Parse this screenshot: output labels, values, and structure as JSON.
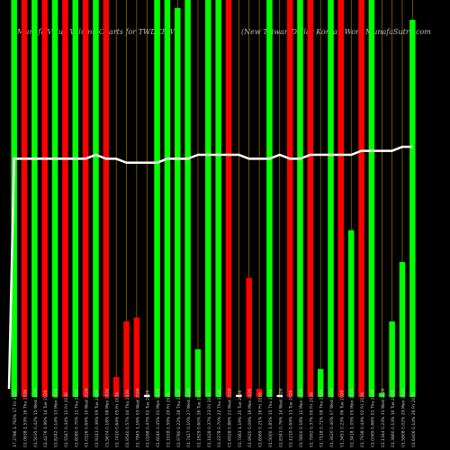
{
  "header": {
    "left_title": "Munafa Value Volume Charts for TWDKRW",
    "right_title": "(New Taiwan Dollar Korean Won) MunafaSutra.com"
  },
  "colors": {
    "background": "#000000",
    "up": "#00ff00",
    "down": "#ff0000",
    "neutral": "#ffffff",
    "grid": "#b8860b",
    "price_line": "#ffffff"
  },
  "chart_data": {
    "type": "bar",
    "title": "Munafa Value Volume Charts for TWDKRW",
    "subtitle": "(New Taiwan Dollar Korean Won) MunafaSutra.com",
    "ylim": [
      0,
      100
    ],
    "grid": true,
    "categories": [
      "17 Fri 2026",
      "16 Thu 2026",
      "15 Wed 2026",
      "14 Tue 2026",
      "13 Mon 2026",
      "12 Fri 2026",
      "11 Thu 2026",
      "10 Wed 2026",
      "09 Tue 2026",
      "08 Mon 2026",
      "05 Fri 2026",
      "04 Thu 2026",
      "03 Wed 2026",
      "02 Tue 2026",
      "01 Mon 2026",
      "29 Fri 2026",
      "28 Thu 2026",
      "27 Wed 2026",
      "26 Tue 2026",
      "23 Fri 2026",
      "22 Thu 2026",
      "21 Wed 2026",
      "20 Tue 2026",
      "19 Mon 2026",
      "16 Fri 2026",
      "15 Thu 2026",
      "14 Wed 2026",
      "13 Tue 2026",
      "12 Mon 2026",
      "09 Fri 2026",
      "08 Thu 2026",
      "07 Wed 2026",
      "06 Tue 2026",
      "05 Mon 2026",
      "02 Fri 2026",
      "01 Thu 2026",
      "31 Wed 2026",
      "30 Tue 2026",
      "29 Mon 2026",
      "26 Fri 2026"
    ],
    "x_labels": [
      "17.2786 1.763%",
      "01.0638 1.53%",
      "01.5035 0.42%",
      "01.4276 1.96%",
      "01.8242 0.14%",
      "01.5547 0.34%",
      "01.6080 0.70%",
      "01.0526 0.69%",
      "01.9243 0.36%",
      "01.5674 0.18%",
      "01.7410 0.64%",
      "01.9540 0.57%",
      "01.7845 1.16%",
      "01.0168 0.47%",
      "01.6040 0.45%",
      "01.1918 0.59%",
      "01.9780 0.22%",
      "01.7427 0.10%",
      "01.1829 0.60%",
      "01.1428 0.37%",
      "01.2278 0.70%",
      "01.6928 0.86%",
      "01.7463 1.19%",
      "01.9920 0.09%",
      "01.6569 0.21%",
      "01.5000 1.85%",
      "01.8341 0.76%",
      "01.1219 0.64%",
      "01.5800 0.18%",
      "01.7992 0.37%",
      "01.7118 0.71%",
      "01.3420 0.40%",
      "01.3451 0.23%",
      "01.3418 1.05%",
      "01.7938 0.44%",
      "01.0069 0.66%",
      "01.1344 0.23%",
      "01.3860 0.13%",
      "01.5808 0.02%",
      "01.6406 0.14%"
    ],
    "series": [
      {
        "values": [
          100,
          100,
          100,
          100,
          100,
          100,
          100,
          100,
          100,
          100,
          5,
          19,
          20,
          0.5,
          100,
          100,
          98,
          100,
          12,
          100,
          100,
          100,
          0.5,
          30,
          2,
          100,
          0.5,
          100,
          100,
          100,
          7,
          100,
          100,
          42,
          100,
          100,
          1,
          19,
          34,
          95
        ],
        "colors": [
          "green",
          "red",
          "green",
          "red",
          "green",
          "red",
          "green",
          "red",
          "green",
          "red",
          "red",
          "red",
          "red",
          "white",
          "green",
          "green",
          "green",
          "green",
          "green",
          "green",
          "green",
          "red",
          "white",
          "red",
          "red",
          "green",
          "white",
          "red",
          "green",
          "red",
          "green",
          "green",
          "red",
          "green",
          "red",
          "green",
          "green",
          "green",
          "green",
          "green"
        ]
      }
    ],
    "price_line": [
      60,
      60,
      60,
      60,
      60,
      60,
      60,
      60,
      61,
      60,
      60,
      59,
      59,
      59,
      59,
      60,
      60,
      60,
      61,
      61,
      61,
      61,
      61,
      60,
      60,
      60,
      61,
      60,
      60,
      61,
      61,
      61,
      61,
      61,
      62,
      62,
      62,
      62,
      63,
      63
    ]
  }
}
